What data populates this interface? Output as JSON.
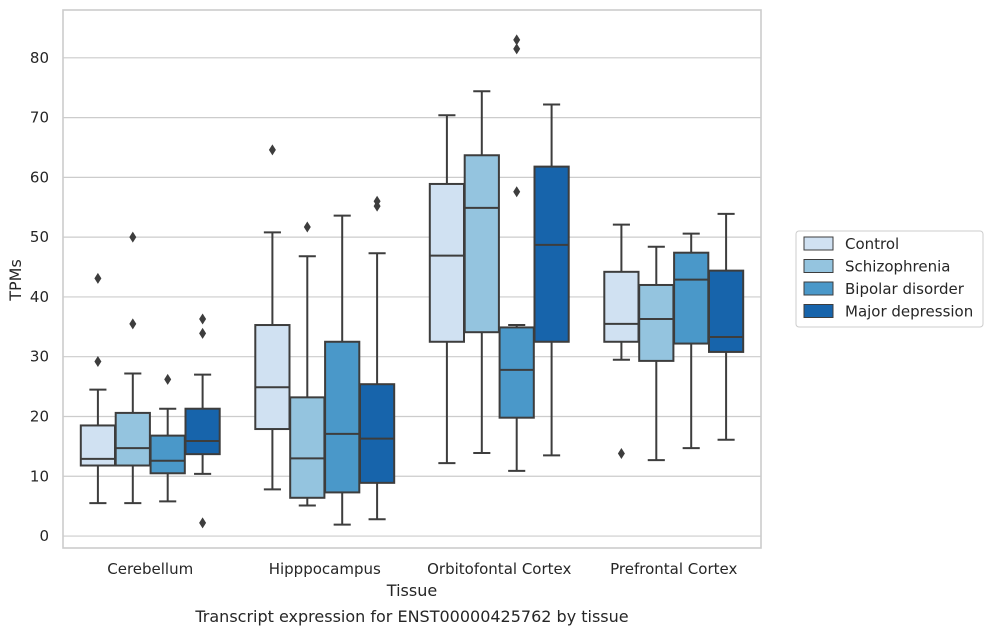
{
  "chart_data": {
    "type": "box",
    "caption": "Transcript expression for ENST00000425762 by tissue",
    "xlabel": "Tissue",
    "ylabel": "TPMs",
    "ylim": [
      -2,
      88
    ],
    "yticks": [
      0,
      10,
      20,
      30,
      40,
      50,
      60,
      70,
      80
    ],
    "grid": true,
    "legend_position": "right",
    "categories": [
      "Cerebellum",
      "Hipppocampus",
      "Orbitofontal Cortex",
      "Prefrontal Cortex"
    ],
    "series": [
      {
        "name": "Control",
        "color": "#d0e1f2",
        "boxes": [
          {
            "whisker_low": 5.5,
            "q1": 11.8,
            "median": 12.9,
            "q3": 18.5,
            "whisker_high": 24.5,
            "outliers": [
              29.2,
              43.1
            ]
          },
          {
            "whisker_low": 7.8,
            "q1": 17.9,
            "median": 24.9,
            "q3": 35.3,
            "whisker_high": 50.8,
            "outliers": [
              64.6
            ]
          },
          {
            "whisker_low": 12.2,
            "q1": 32.5,
            "median": 46.9,
            "q3": 58.9,
            "whisker_high": 70.4,
            "outliers": []
          },
          {
            "whisker_low": 29.5,
            "q1": 32.5,
            "median": 35.5,
            "q3": 44.2,
            "whisker_high": 52.1,
            "outliers": [
              13.8
            ]
          }
        ]
      },
      {
        "name": "Schizophrenia",
        "color": "#94c4df",
        "boxes": [
          {
            "whisker_low": 5.5,
            "q1": 11.8,
            "median": 14.7,
            "q3": 20.6,
            "whisker_high": 27.2,
            "outliers": [
              35.5,
              50.0
            ]
          },
          {
            "whisker_low": 5.1,
            "q1": 6.4,
            "median": 13.0,
            "q3": 23.2,
            "whisker_high": 46.8,
            "outliers": [
              51.7
            ]
          },
          {
            "whisker_low": 13.9,
            "q1": 34.1,
            "median": 54.9,
            "q3": 63.7,
            "whisker_high": 74.4,
            "outliers": []
          },
          {
            "whisker_low": 12.7,
            "q1": 29.3,
            "median": 36.3,
            "q3": 42.0,
            "whisker_high": 48.4,
            "outliers": []
          }
        ]
      },
      {
        "name": "Bipolar disorder",
        "color": "#4a98c9",
        "boxes": [
          {
            "whisker_low": 5.8,
            "q1": 10.5,
            "median": 12.6,
            "q3": 16.8,
            "whisker_high": 21.3,
            "outliers": [
              26.2
            ]
          },
          {
            "whisker_low": 1.9,
            "q1": 7.3,
            "median": 17.1,
            "q3": 32.5,
            "whisker_high": 53.6,
            "outliers": []
          },
          {
            "whisker_low": 10.9,
            "q1": 19.8,
            "median": 27.8,
            "q3": 34.9,
            "whisker_high": 35.3,
            "outliers": [
              57.6,
              81.5,
              83.0
            ]
          },
          {
            "whisker_low": 14.7,
            "q1": 32.2,
            "median": 42.9,
            "q3": 47.4,
            "whisker_high": 50.6,
            "outliers": []
          }
        ]
      },
      {
        "name": "Major depression",
        "color": "#1764ab",
        "boxes": [
          {
            "whisker_low": 10.4,
            "q1": 13.7,
            "median": 15.9,
            "q3": 21.3,
            "whisker_high": 27.0,
            "outliers": [
              2.2,
              33.9,
              36.3
            ]
          },
          {
            "whisker_low": 2.8,
            "q1": 8.9,
            "median": 16.3,
            "q3": 25.4,
            "whisker_high": 47.3,
            "outliers": [
              55.2,
              56.0
            ]
          },
          {
            "whisker_low": 13.5,
            "q1": 32.5,
            "median": 48.7,
            "q3": 61.8,
            "whisker_high": 72.2,
            "outliers": []
          },
          {
            "whisker_low": 16.1,
            "q1": 30.8,
            "median": 33.3,
            "q3": 44.4,
            "whisker_high": 53.9,
            "outliers": []
          }
        ]
      }
    ]
  }
}
